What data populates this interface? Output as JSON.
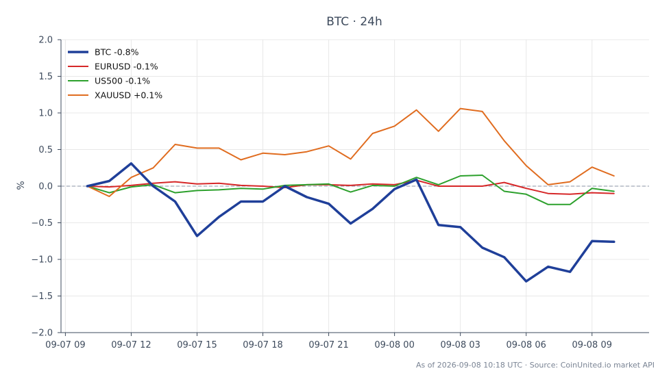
{
  "chart_data": {
    "type": "line",
    "title": "BTC · 24h",
    "xlabel": "",
    "ylabel": "%",
    "ylim": [
      -2.0,
      2.0
    ],
    "yticks": [
      "2.0",
      "1.5",
      "1.0",
      "0.5",
      "0.0",
      "−0.5",
      "−1.0",
      "−1.5",
      "−2.0"
    ],
    "ytick_values": [
      2.0,
      1.5,
      1.0,
      0.5,
      0.0,
      -0.5,
      -1.0,
      -1.5,
      -2.0
    ],
    "xticks": [
      "09-07 09",
      "09-07 12",
      "09-07 15",
      "09-07 18",
      "09-07 21",
      "09-08 00",
      "09-08 03",
      "09-08 06",
      "09-08 09"
    ],
    "xtick_hours": [
      -1,
      2,
      5,
      8,
      11,
      14,
      17,
      20,
      23
    ],
    "x_hours": [
      0,
      1,
      2,
      3,
      4,
      5,
      6,
      7,
      8,
      9,
      10,
      11,
      12,
      13,
      14,
      15,
      16,
      17,
      18,
      19,
      20,
      21,
      22,
      23,
      24
    ],
    "xlim_hours": [
      -1.2,
      25.6
    ],
    "grid": true,
    "zero_line": true,
    "legend_position": "top-left",
    "series": [
      {
        "name": "BTC -0.8%",
        "color": "#1f3f99",
        "width": 3.5,
        "values": [
          0.0,
          0.07,
          0.31,
          0.0,
          -0.21,
          -0.68,
          -0.42,
          -0.21,
          -0.21,
          0.0,
          -0.15,
          -0.24,
          -0.51,
          -0.31,
          -0.04,
          0.09,
          -0.53,
          -0.56,
          -0.84,
          -0.97,
          -1.3,
          -1.1,
          -1.17,
          -0.75,
          -0.76
        ]
      },
      {
        "name": "EURUSD -0.1%",
        "color": "#d62728",
        "width": 2,
        "values": [
          0.0,
          -0.01,
          0.01,
          0.04,
          0.06,
          0.03,
          0.04,
          0.01,
          0.0,
          -0.02,
          0.02,
          0.02,
          0.01,
          0.03,
          0.02,
          0.08,
          0.0,
          0.0,
          0.0,
          0.05,
          -0.03,
          -0.1,
          -0.11,
          -0.09,
          -0.1
        ]
      },
      {
        "name": "US500 -0.1%",
        "color": "#2ca02c",
        "width": 2,
        "values": [
          0.0,
          -0.09,
          -0.01,
          0.02,
          -0.09,
          -0.06,
          -0.05,
          -0.03,
          -0.04,
          0.01,
          0.02,
          0.03,
          -0.08,
          0.01,
          0.0,
          0.12,
          0.02,
          0.14,
          0.15,
          -0.07,
          -0.11,
          -0.25,
          -0.25,
          -0.03,
          -0.07
        ]
      },
      {
        "name": "XAUUSD +0.1%",
        "color": "#e06c1f",
        "width": 2,
        "values": [
          0.0,
          -0.14,
          0.12,
          0.25,
          0.57,
          0.52,
          0.52,
          0.36,
          0.45,
          0.43,
          0.47,
          0.55,
          0.37,
          0.72,
          0.82,
          1.04,
          0.75,
          1.06,
          1.02,
          0.62,
          0.28,
          0.02,
          0.06,
          0.26,
          0.14
        ]
      }
    ],
    "footer": "As of 2026-09-08 10:18 UTC · Source: CoinUnited.io market API"
  }
}
